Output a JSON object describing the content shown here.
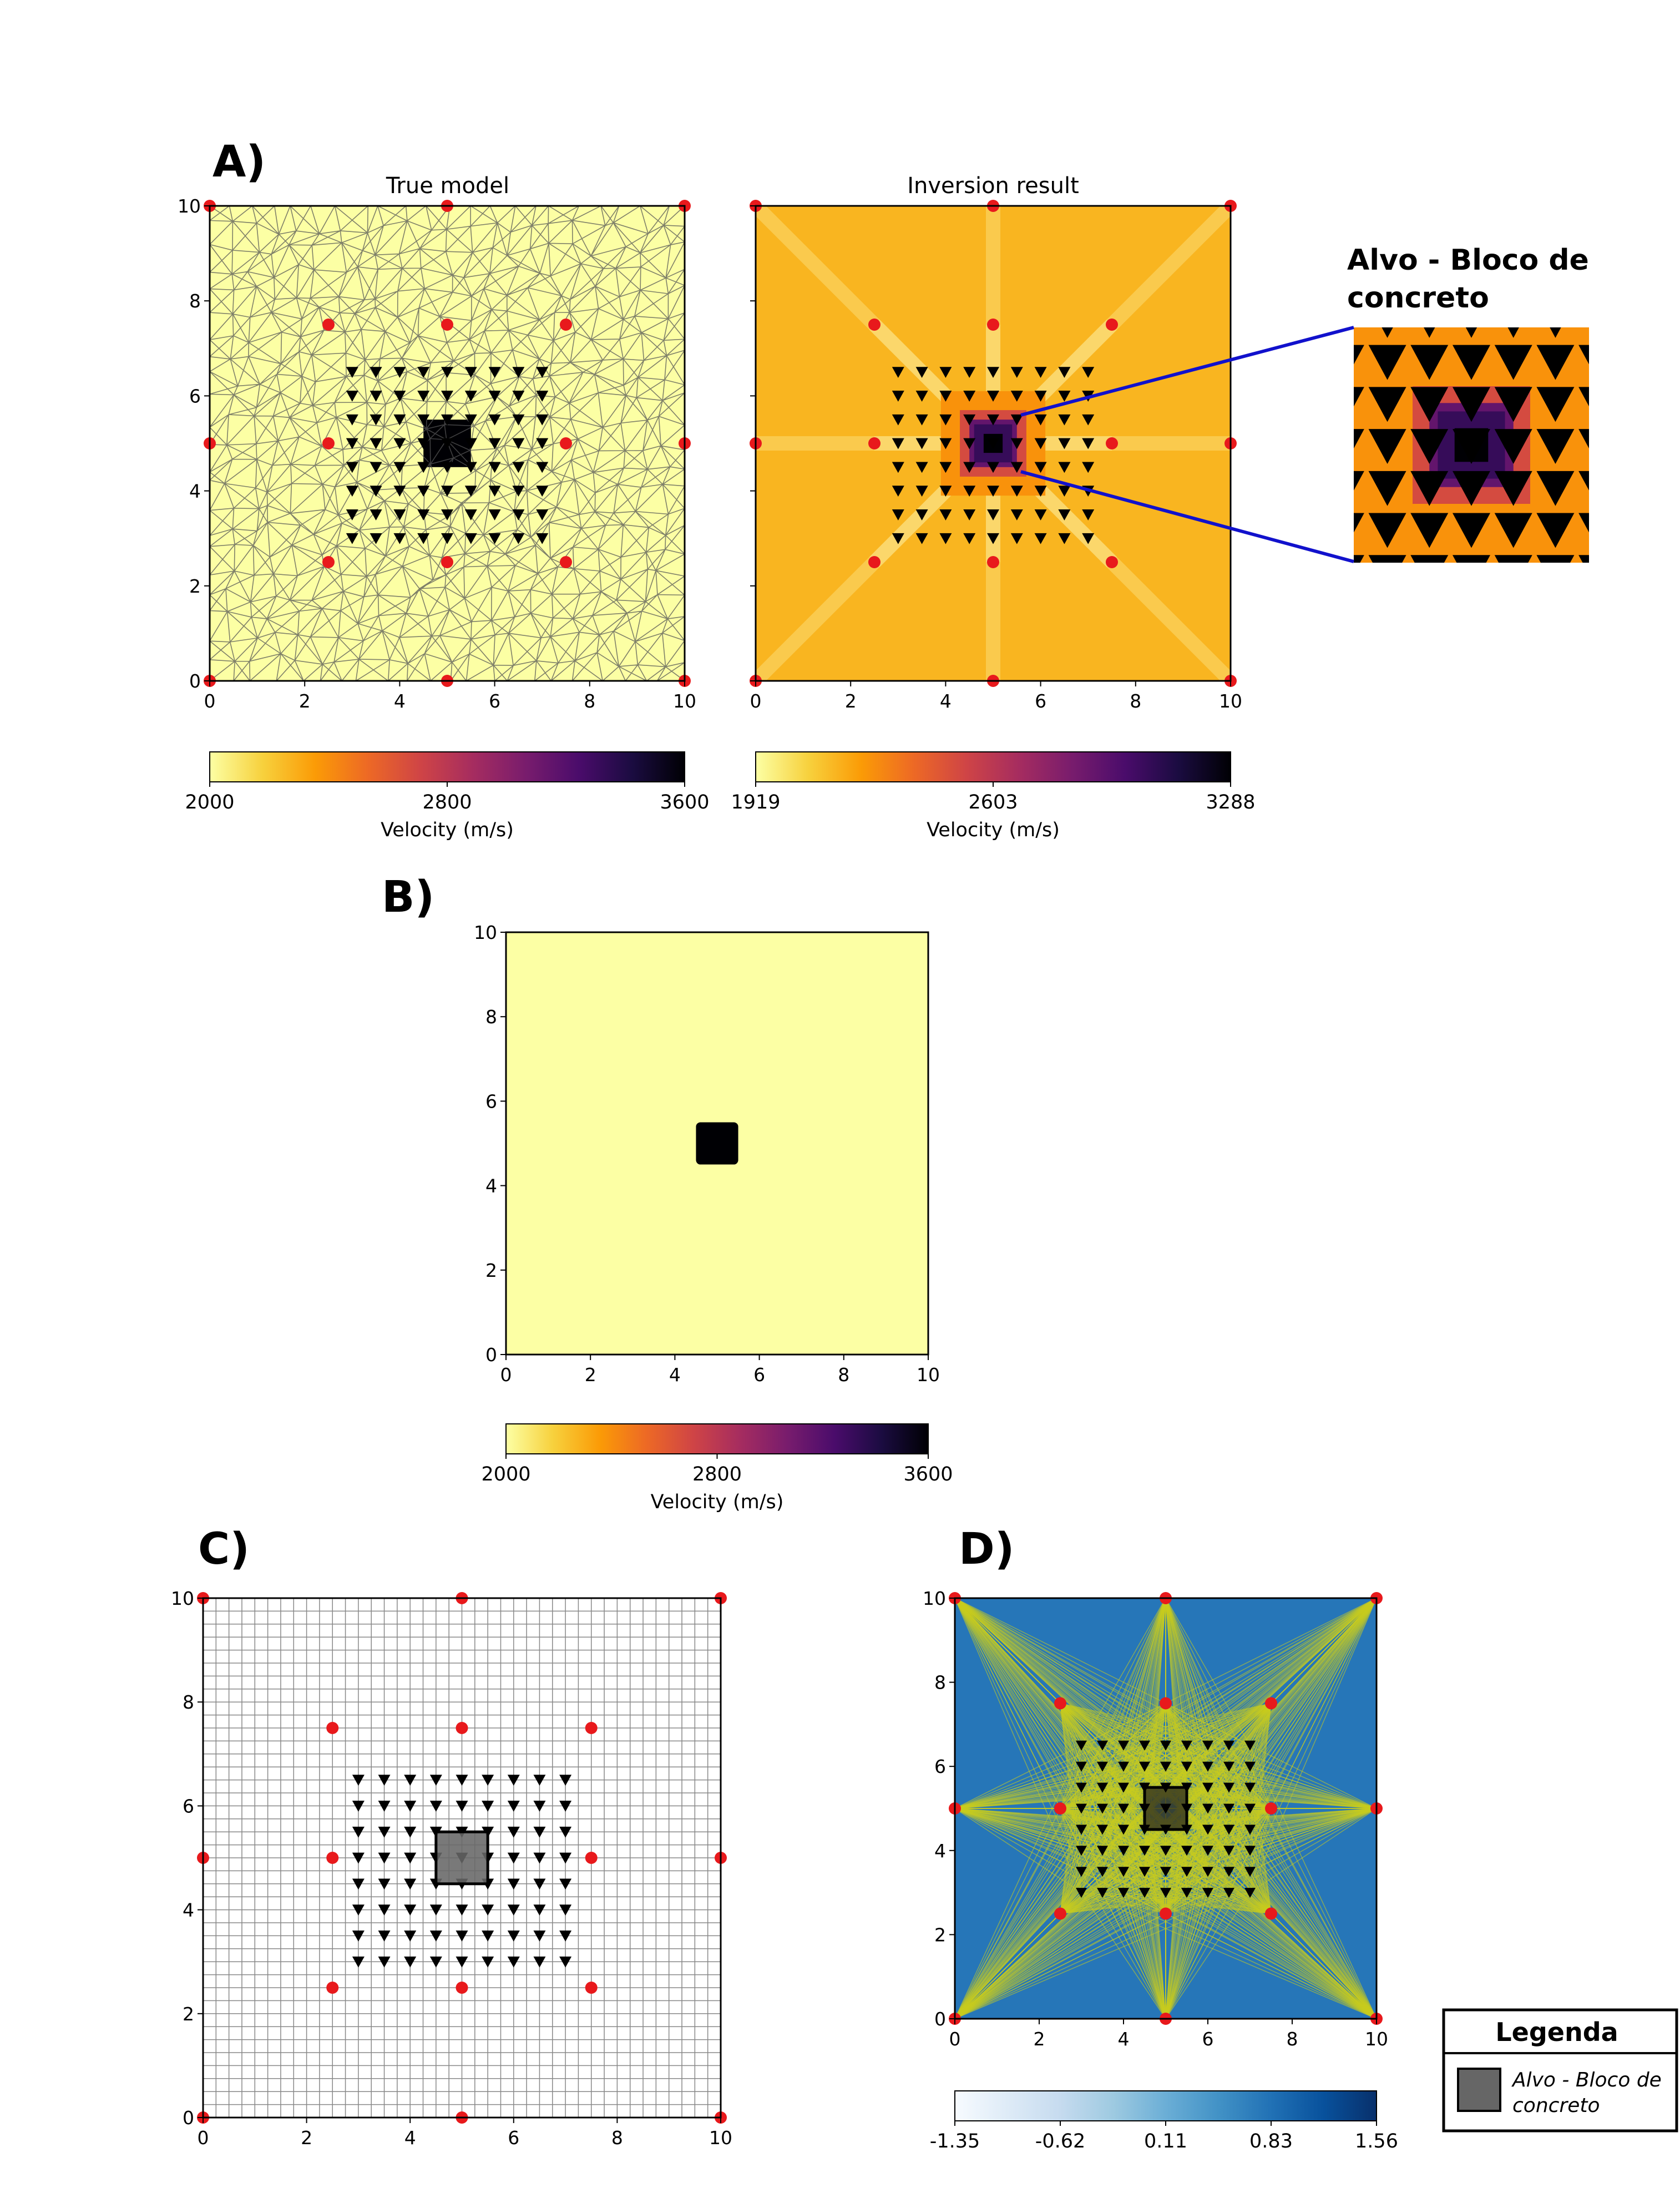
{
  "panel_labels": {
    "a": "A)",
    "b": "B)",
    "c": "C)",
    "d": "D)"
  },
  "colors": {
    "source": "#e8191c",
    "receiver": "#000000",
    "ray": "#c8cc1e",
    "panel_d_background": "#2676b8",
    "target_fill": "#666666",
    "zoom_outline": "#1111cc"
  },
  "colormaps": {
    "inferno": [
      "#fcffa4",
      "#f7d13d",
      "#fb9b06",
      "#ed6925",
      "#cf4446",
      "#a52c60",
      "#781c6d",
      "#4a0c6b",
      "#1b0c41",
      "#000004"
    ],
    "blues": [
      "#f7fbff",
      "#deebf7",
      "#c6dbef",
      "#9ecae1",
      "#6baed6",
      "#4292c6",
      "#2171b5",
      "#08519c",
      "#08306b"
    ]
  },
  "geometry": {
    "sources": [
      [
        0,
        0
      ],
      [
        5,
        0
      ],
      [
        10,
        0
      ],
      [
        2.5,
        2.5
      ],
      [
        5,
        2.5
      ],
      [
        7.5,
        2.5
      ],
      [
        0,
        5
      ],
      [
        2.5,
        5
      ],
      [
        7.5,
        5
      ],
      [
        10,
        5
      ],
      [
        2.5,
        7.5
      ],
      [
        5,
        7.5
      ],
      [
        7.5,
        7.5
      ],
      [
        0,
        10
      ],
      [
        5,
        10
      ],
      [
        10,
        10
      ]
    ],
    "receivers_x": [
      3.0,
      3.5,
      4.0,
      4.5,
      5.0,
      5.5,
      6.0,
      6.5,
      7.0
    ],
    "receivers_y": [
      3.0,
      3.5,
      4.0,
      4.5,
      5.0,
      5.5,
      6.0,
      6.5
    ],
    "target_box": {
      "x": [
        4.5,
        5.5
      ],
      "y": [
        4.5,
        5.5
      ]
    }
  },
  "chart_data": [
    {
      "id": "A-true",
      "type": "heatmap",
      "title": "True model",
      "xlim": [
        0,
        10
      ],
      "ylim": [
        0,
        10
      ],
      "xticks": [
        "0",
        "2",
        "4",
        "6",
        "8",
        "10"
      ],
      "yticks": [
        "0",
        "2",
        "4",
        "6",
        "8",
        "10"
      ],
      "background_value": 2000,
      "anomaly": {
        "x": [
          4.5,
          5.5
        ],
        "y": [
          4.5,
          5.5
        ],
        "value": 3600
      },
      "mesh": "triangular",
      "colorbar": {
        "label": "Velocity (m/s)",
        "min": 2000,
        "max": 3600,
        "ticks": [
          "2000",
          "2800",
          "3600"
        ],
        "colormap": "inferno"
      }
    },
    {
      "id": "A-inversion",
      "type": "heatmap",
      "title": "Inversion result",
      "xlim": [
        0,
        10
      ],
      "ylim": [
        0,
        10
      ],
      "xticks": [
        "0",
        "2",
        "4",
        "6",
        "8",
        "10"
      ],
      "yticks": [
        "",
        "",
        "",
        "",
        "",
        ""
      ],
      "background_value": 2150,
      "anomaly_rings": [
        {
          "x": [
            3.9,
            6.1
          ],
          "y": [
            3.9,
            6.1
          ],
          "value": 2250
        },
        {
          "x": [
            4.3,
            5.7
          ],
          "y": [
            4.3,
            5.7
          ],
          "value": 2500
        },
        {
          "x": [
            4.5,
            5.5
          ],
          "y": [
            4.5,
            5.5
          ],
          "value": 2900
        },
        {
          "x": [
            4.6,
            5.4
          ],
          "y": [
            4.6,
            5.4
          ],
          "value": 3050
        },
        {
          "x": [
            4.8,
            5.2
          ],
          "y": [
            4.8,
            5.2
          ],
          "value": 3288
        }
      ],
      "colorbar": {
        "label": "Velocity (m/s)",
        "min": 1919,
        "max": 3288,
        "ticks": [
          "1919",
          "2603",
          "3288"
        ],
        "colormap": "inferno"
      }
    },
    {
      "id": "B",
      "type": "heatmap",
      "xlim": [
        0,
        10
      ],
      "ylim": [
        0,
        10
      ],
      "xticks": [
        "0",
        "2",
        "4",
        "6",
        "8",
        "10"
      ],
      "yticks": [
        "0",
        "2",
        "4",
        "6",
        "8",
        "10"
      ],
      "background_value": 2000,
      "anomaly": {
        "x": [
          4.5,
          5.5
        ],
        "y": [
          4.5,
          5.5
        ],
        "value": 3600
      },
      "colorbar": {
        "label": "Velocity (m/s)",
        "min": 2000,
        "max": 3600,
        "ticks": [
          "2000",
          "2800",
          "3600"
        ],
        "colormap": "inferno"
      }
    },
    {
      "id": "C",
      "type": "scatter",
      "xlim": [
        0,
        10
      ],
      "ylim": [
        0,
        10
      ],
      "xticks": [
        "0",
        "2",
        "4",
        "6",
        "8",
        "10"
      ],
      "yticks": [
        "0",
        "2",
        "4",
        "6",
        "8",
        "10"
      ],
      "grid_step": 0.25,
      "show_target": true
    },
    {
      "id": "D",
      "type": "scatter",
      "xlim": [
        0,
        10
      ],
      "ylim": [
        0,
        10
      ],
      "xticks": [
        "0",
        "2",
        "4",
        "6",
        "8",
        "10"
      ],
      "yticks": [
        "0",
        "2",
        "4",
        "6",
        "8",
        "10"
      ],
      "rays": "all source-receiver pairs",
      "show_target": true,
      "colorbar": {
        "min": -1.35,
        "max": 1.56,
        "ticks": [
          "-1.35",
          "-0.62",
          "0.11",
          "0.83",
          "1.56"
        ],
        "colormap": "blues"
      }
    }
  ],
  "zoom_inset": {
    "title_line1": "Alvo - Bloco de",
    "title_line2": "concreto"
  },
  "legend": {
    "title": "Legenda",
    "item_line1": "Alvo - Bloco de",
    "item_line2": "concreto"
  }
}
